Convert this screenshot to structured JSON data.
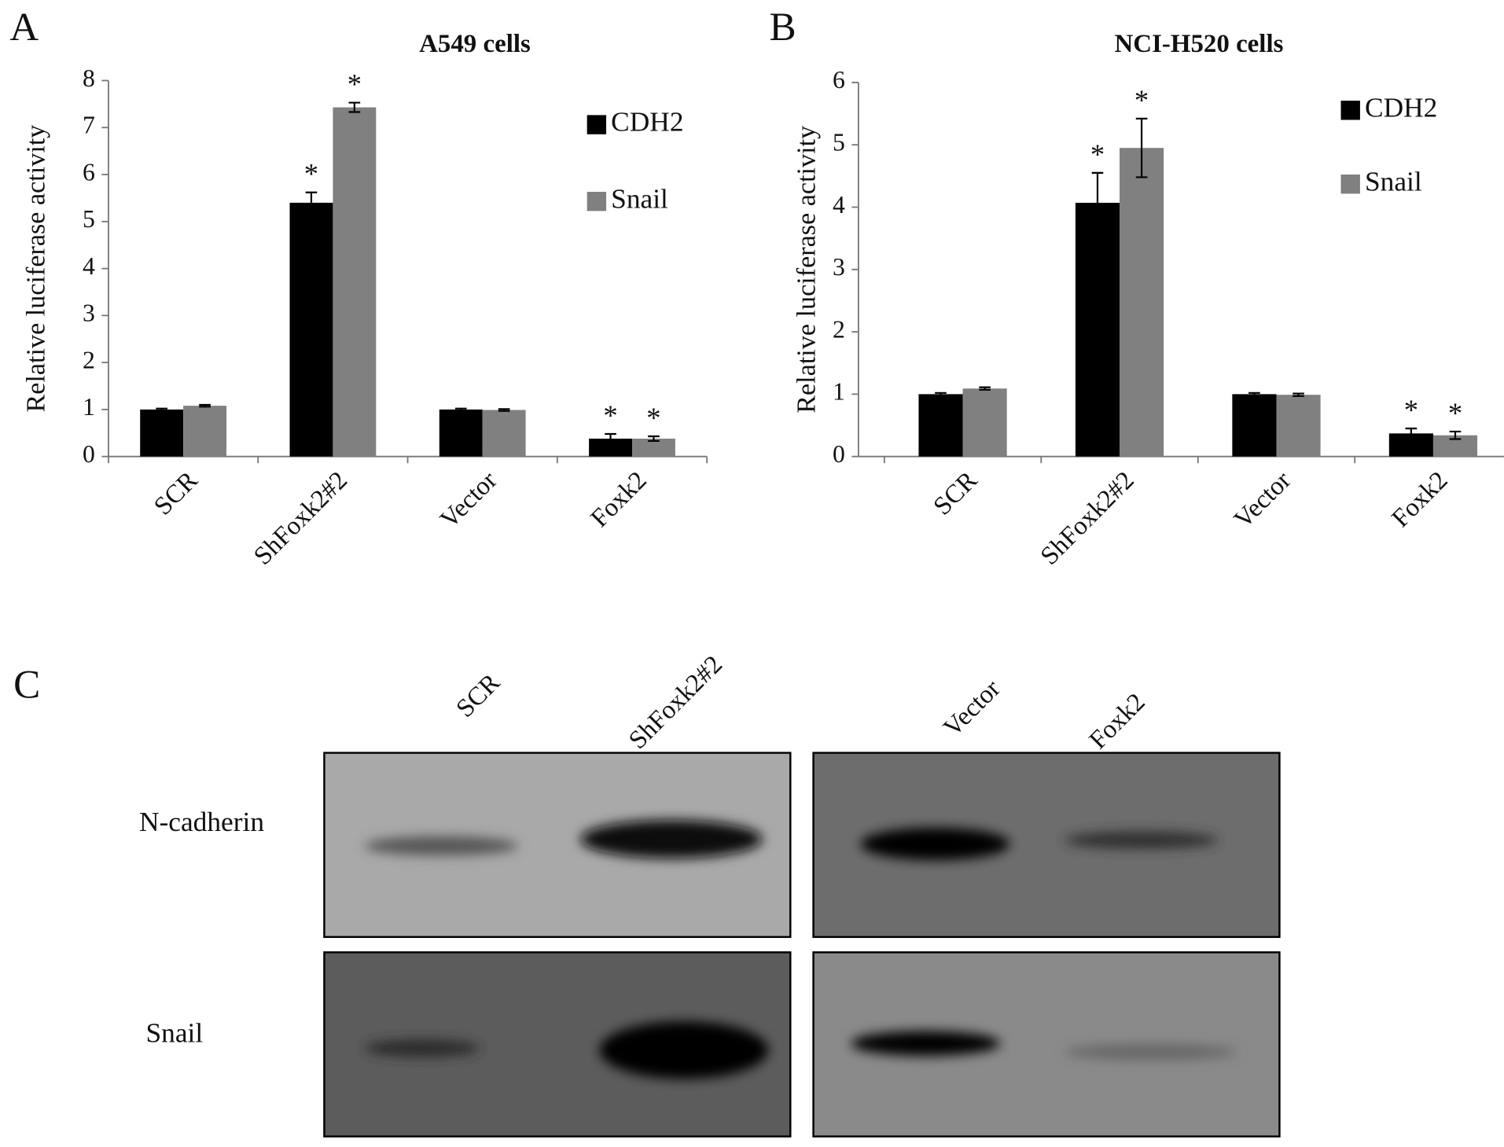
{
  "panel_labels": [
    "A",
    "B",
    "C"
  ],
  "chart_data": [
    {
      "type": "bar",
      "title": "A549 cells",
      "y_label": "Relative luciferase activity",
      "categories": [
        "SCR",
        "ShFoxk2#2",
        "Vector",
        "Foxk2"
      ],
      "series": [
        {
          "name": "CDH2",
          "color": "#000000",
          "values": [
            1.0,
            5.4,
            1.0,
            0.38
          ],
          "errors": [
            0.02,
            0.22,
            0.02,
            0.1
          ],
          "significance": [
            null,
            "*",
            null,
            "*"
          ]
        },
        {
          "name": "Snail",
          "color": "#808080",
          "values": [
            1.08,
            7.43,
            0.99,
            0.38
          ],
          "errors": [
            0.02,
            0.1,
            0.02,
            0.05
          ],
          "significance": [
            null,
            "*",
            null,
            "*"
          ]
        }
      ],
      "ylim": [
        0,
        8
      ],
      "yticks": [
        0,
        1,
        2,
        3,
        4,
        5,
        6,
        7,
        8
      ],
      "grid": false,
      "legend": "upper right"
    },
    {
      "type": "bar",
      "title": "NCI-H520 cells",
      "y_label": "Relative luciferase activity",
      "categories": [
        "SCR",
        "ShFoxk2#2",
        "Vector",
        "Foxk2"
      ],
      "series": [
        {
          "name": "CDH2",
          "color": "#000000",
          "values": [
            1.0,
            4.07,
            1.0,
            0.37
          ],
          "errors": [
            0.02,
            0.48,
            0.02,
            0.08
          ],
          "significance": [
            null,
            "*",
            null,
            "*"
          ]
        },
        {
          "name": "Snail",
          "color": "#808080",
          "values": [
            1.09,
            4.95,
            0.99,
            0.34
          ],
          "errors": [
            0.02,
            0.47,
            0.02,
            0.06
          ],
          "significance": [
            null,
            "*",
            null,
            "*"
          ]
        }
      ],
      "ylim": [
        0,
        6
      ],
      "yticks": [
        0,
        1,
        2,
        3,
        4,
        5,
        6
      ],
      "grid": false,
      "legend": "upper right"
    }
  ],
  "blot": {
    "lanes": [
      "SCR",
      "ShFoxk2#2",
      "Vector",
      "Foxk2"
    ],
    "rows": [
      "N-cadherin",
      "Snail"
    ]
  }
}
